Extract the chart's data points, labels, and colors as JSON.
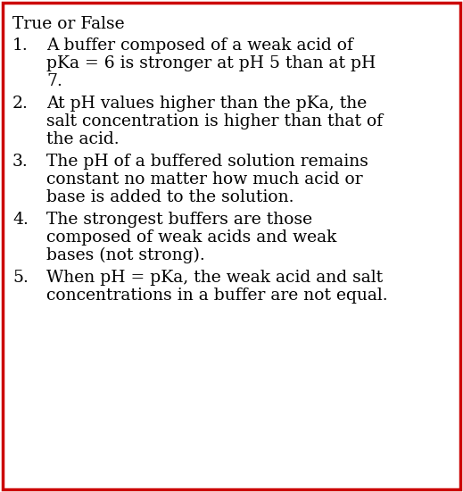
{
  "title": "True or False",
  "items": [
    [
      "A buffer composed of a weak acid of",
      "pKa = 6 is stronger at pH 5 than at pH",
      "7."
    ],
    [
      "At pH values higher than the pKa, the",
      "salt concentration is higher than that of",
      "the acid."
    ],
    [
      "The pH of a buffered solution remains",
      "constant no matter how much acid or",
      "base is added to the solution."
    ],
    [
      "The strongest buffers are those",
      "composed of weak acids and weak",
      "bases (not strong)."
    ],
    [
      "When pH = pKa, the weak acid and salt",
      "concentrations in a buffer are not equal."
    ]
  ],
  "background_color": "#ffffff",
  "border_color": "#cc0000",
  "text_color": "#000000",
  "font_size": 13.5,
  "border_linewidth": 2.5,
  "fig_width": 5.19,
  "fig_height": 5.51,
  "dpi": 100
}
